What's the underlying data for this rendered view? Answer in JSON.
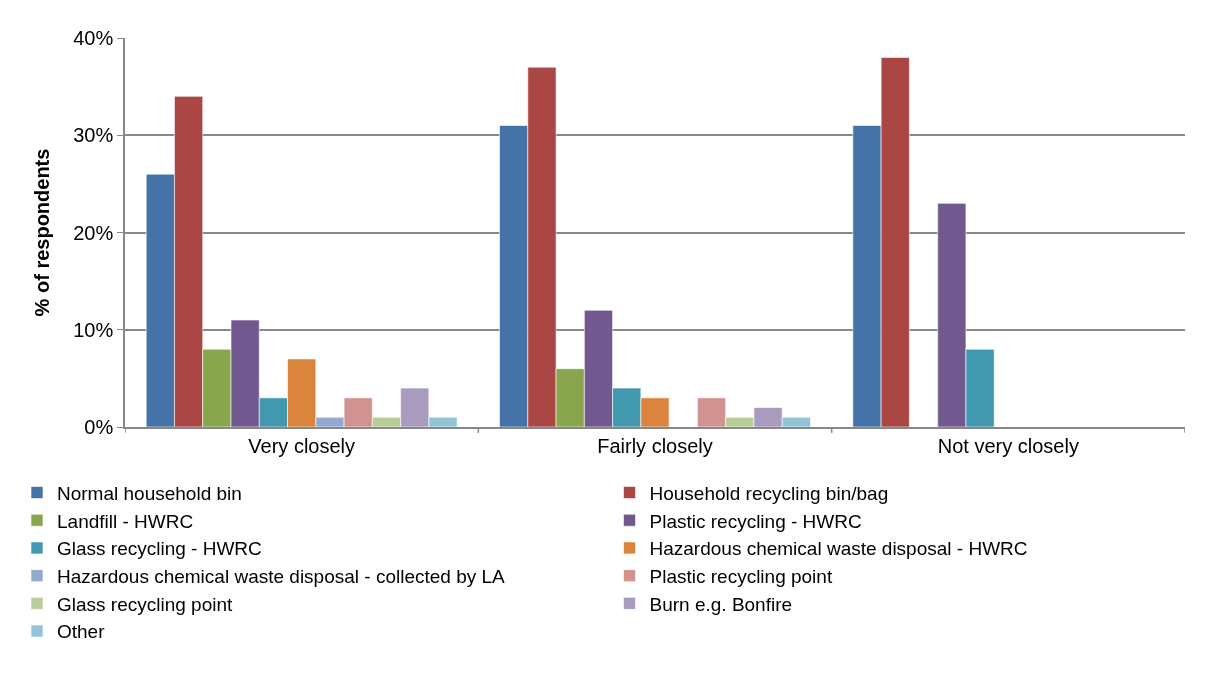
{
  "chart_data": {
    "type": "bar",
    "ylabel": "% of respondents",
    "categories": [
      "Very closely",
      "Fairly closely",
      "Not very closely"
    ],
    "series": [
      {
        "name": "Normal household bin",
        "color": "#4572a7",
        "values": [
          26,
          31,
          31
        ]
      },
      {
        "name": "Household recycling bin/bag",
        "color": "#aa4643",
        "values": [
          34,
          37,
          38
        ]
      },
      {
        "name": "Landfill - HWRC",
        "color": "#89a54e",
        "values": [
          8,
          6,
          null
        ]
      },
      {
        "name": "Plastic recycling - HWRC",
        "color": "#71588f",
        "values": [
          11,
          12,
          23
        ]
      },
      {
        "name": "Glass recycling - HWRC",
        "color": "#4198af",
        "values": [
          3,
          4,
          8
        ]
      },
      {
        "name": "Hazardous chemical waste disposal - HWRC",
        "color": "#db843d",
        "values": [
          7,
          3,
          null
        ]
      },
      {
        "name": "Hazardous chemical waste disposal - collected by LA",
        "color": "#93a9cf",
        "values": [
          1,
          null,
          null
        ]
      },
      {
        "name": "Plastic recycling point",
        "color": "#d19392",
        "values": [
          3,
          3,
          null
        ]
      },
      {
        "name": "Glass recycling point",
        "color": "#b9cd96",
        "values": [
          1,
          1,
          null
        ]
      },
      {
        "name": "Burn e.g. Bonfire",
        "color": "#a99bbd",
        "values": [
          4,
          2,
          null
        ]
      },
      {
        "name": "Other",
        "color": "#92c5d8",
        "values": [
          1,
          1,
          null
        ]
      }
    ],
    "ylim": [
      0,
      40
    ],
    "yticks": [
      {
        "value": 0,
        "label": "0%"
      },
      {
        "value": 10,
        "label": "10%"
      },
      {
        "value": 20,
        "label": "20%"
      },
      {
        "value": 30,
        "label": "30%"
      },
      {
        "value": 40,
        "label": "40%"
      }
    ],
    "grid": "y",
    "legend": "bottom"
  }
}
